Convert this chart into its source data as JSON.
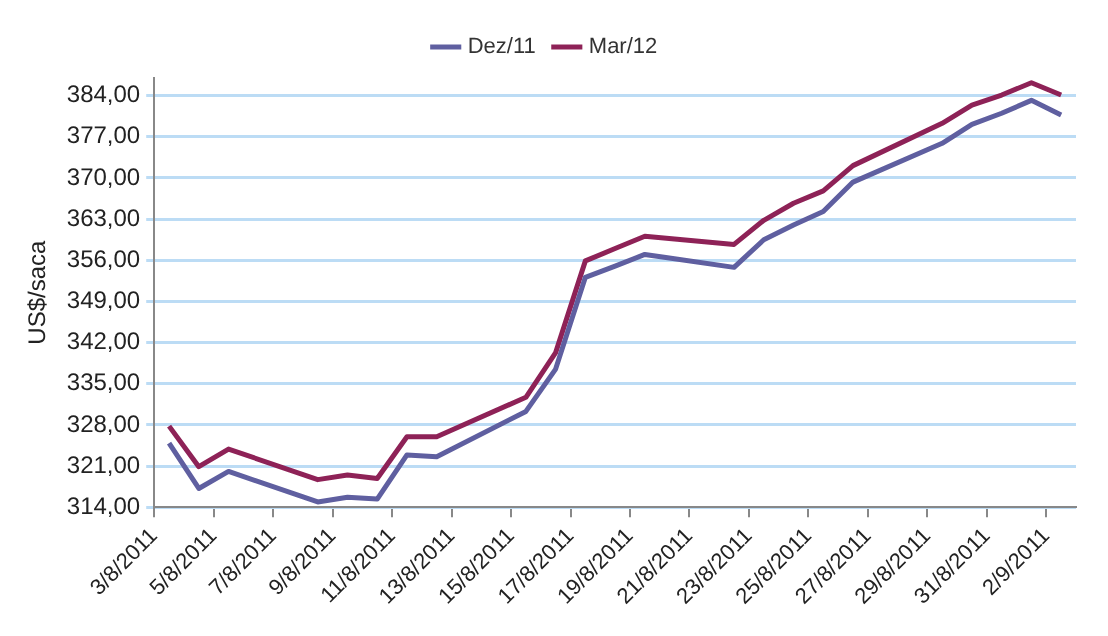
{
  "chart_data": {
    "type": "line",
    "ylabel": "US$/saca",
    "legend": "top",
    "grid": "y",
    "marker": "none",
    "line_style": "solid",
    "x": [
      "2011-08-03T12:00",
      "2011-08-04T12:00",
      "2011-08-05T12:00",
      "2011-08-08T12:00",
      "2011-08-09T12:00",
      "2011-08-10T12:00",
      "2011-08-11T12:00",
      "2011-08-12T12:00",
      "2011-08-15T12:00",
      "2011-08-16T12:00",
      "2011-08-17T12:00",
      "2011-08-18T12:00",
      "2011-08-19T12:00",
      "2011-08-22T12:00",
      "2011-08-23T12:00",
      "2011-08-24T12:00",
      "2011-08-25T12:00",
      "2011-08-26T12:00",
      "2011-08-29T12:00",
      "2011-08-30T12:00",
      "2011-08-31T12:00",
      "2011-09-01T12:00",
      "2011-09-02T12:00"
    ],
    "series": [
      {
        "name": "Dez/11",
        "color": "#5f5fa0",
        "values": [
          324.9,
          317.2,
          320.1,
          314.9,
          315.7,
          315.4,
          322.9,
          322.6,
          330.3,
          337.5,
          353.1,
          355.0,
          357.0,
          354.8,
          359.5,
          362.0,
          364.3,
          369.3,
          375.9,
          379.1,
          381.0,
          383.2,
          380.7
        ]
      },
      {
        "name": "Mar/12",
        "color": "#8e2257",
        "values": [
          327.8,
          320.9,
          323.9,
          318.7,
          319.5,
          318.9,
          326.0,
          326.0,
          332.7,
          340.3,
          355.9,
          358.0,
          360.1,
          358.7,
          362.8,
          365.7,
          367.8,
          372.1,
          379.3,
          382.4,
          384.1,
          386.2,
          384.1
        ]
      }
    ],
    "xlim": [
      "2011-08-03",
      "2011-09-03"
    ],
    "xticks": [
      {
        "value": "2011-08-03",
        "label": "3/8/2011"
      },
      {
        "value": "2011-08-05",
        "label": "5/8/2011"
      },
      {
        "value": "2011-08-07",
        "label": "7/8/2011"
      },
      {
        "value": "2011-08-09",
        "label": "9/8/2011"
      },
      {
        "value": "2011-08-11",
        "label": "11/8/2011"
      },
      {
        "value": "2011-08-13",
        "label": "13/8/2011"
      },
      {
        "value": "2011-08-15",
        "label": "15/8/2011"
      },
      {
        "value": "2011-08-17",
        "label": "17/8/2011"
      },
      {
        "value": "2011-08-19",
        "label": "19/8/2011"
      },
      {
        "value": "2011-08-21",
        "label": "21/8/2011"
      },
      {
        "value": "2011-08-23",
        "label": "23/8/2011"
      },
      {
        "value": "2011-08-25",
        "label": "25/8/2011"
      },
      {
        "value": "2011-08-27",
        "label": "27/8/2011"
      },
      {
        "value": "2011-08-29",
        "label": "29/8/2011"
      },
      {
        "value": "2011-08-31",
        "label": "31/8/2011"
      },
      {
        "value": "2011-09-02",
        "label": "2/9/2011"
      }
    ],
    "ylim": [
      314,
      387
    ],
    "yticks": [
      {
        "value": 314,
        "label": "314,00"
      },
      {
        "value": 321,
        "label": "321,00"
      },
      {
        "value": 328,
        "label": "328,00"
      },
      {
        "value": 335,
        "label": "335,00"
      },
      {
        "value": 342,
        "label": "342,00"
      },
      {
        "value": 349,
        "label": "349,00"
      },
      {
        "value": 356,
        "label": "356,00"
      },
      {
        "value": 363,
        "label": "363,00"
      },
      {
        "value": 370,
        "label": "370,00"
      },
      {
        "value": 377,
        "label": "377,00"
      },
      {
        "value": 384,
        "label": "384,00"
      }
    ]
  }
}
